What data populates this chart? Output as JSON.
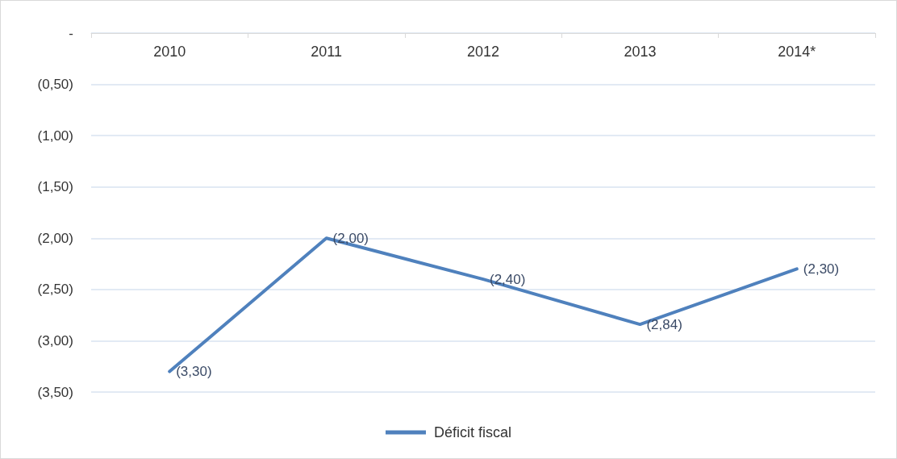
{
  "chart_data": {
    "type": "line",
    "categories": [
      "2010",
      "2011",
      "2012",
      "2013",
      "2014*"
    ],
    "series": [
      {
        "name": "Déficit fiscal",
        "color": "#4f81bd",
        "values": [
          -3.3,
          -2.0,
          -2.4,
          -2.84,
          -2.3
        ],
        "value_labels": [
          "(3,30)",
          "(2,00)",
          "(2,40)",
          "(2,84)",
          "(2,30)"
        ]
      }
    ],
    "ylim": [
      -3.5,
      0
    ],
    "yticks": [
      {
        "value": -3.5,
        "label": "(3,50)"
      },
      {
        "value": -3,
        "label": "(3,00)"
      },
      {
        "value": -2.5,
        "label": "(2,50)"
      },
      {
        "value": -2,
        "label": "(2,00)"
      },
      {
        "value": -1.5,
        "label": "(1,50)"
      },
      {
        "value": -1,
        "label": "(1,00)"
      },
      {
        "value": -0.5,
        "label": "(0,50)"
      },
      {
        "value": 0,
        "label": "-"
      }
    ],
    "grid": "y",
    "legend": "bottom",
    "marker": "none",
    "line_style": "solid"
  }
}
